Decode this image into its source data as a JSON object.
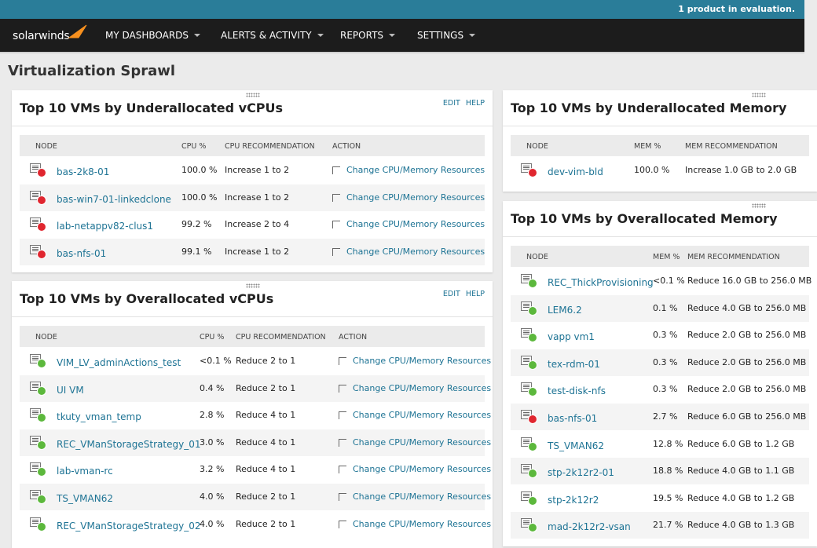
{
  "banner": "1 product in evaluation.",
  "nav": {
    "logo": "solarwinds",
    "menus": [
      "MY DASHBOARDS",
      "ALERTS & ACTIVITY",
      "REPORTS",
      "SETTINGS"
    ]
  },
  "page_title": "Virtualization Sprawl",
  "panels": [
    {
      "title": "Top 10 VMs by Underallocated vCPUs",
      "links": [
        "EDIT",
        "HELP"
      ],
      "columns": [
        "NODE",
        "CPU %",
        "CPU RECOMMENDATION",
        "ACTION"
      ],
      "rows": [
        {
          "node": "bas-2k8-01",
          "status_color": "#e0262f",
          "value": "100.0 %",
          "recommendation": "Increase 1 to 2",
          "action": "Change CPU/Memory Resources"
        },
        {
          "node": "bas-win7-01-linkedclone",
          "status_color": "#e0262f",
          "value": "100.0 %",
          "recommendation": "Increase 1 to 2",
          "action": "Change CPU/Memory Resources"
        },
        {
          "node": "lab-netappv82-clus1",
          "status_color": "#e0262f",
          "value": "99.2 %",
          "recommendation": "Increase 2 to 4",
          "action": "Change CPU/Memory Resources"
        },
        {
          "node": "bas-nfs-01",
          "status_color": "#e0262f",
          "value": "99.1 %",
          "recommendation": "Increase 1 to 2",
          "action": "Change CPU/Memory Resources"
        }
      ]
    },
    {
      "title": "Top 10 VMs by Overallocated vCPUs",
      "links": [
        "EDIT",
        "HELP"
      ],
      "columns": [
        "NODE",
        "CPU %",
        "CPU RECOMMENDATION",
        "ACTION"
      ],
      "rows": [
        {
          "node": "VIM_LV_adminActions_test",
          "status_color": "#5cb83c",
          "value": "<0.1 %",
          "recommendation": "Reduce 2 to 1",
          "action": "Change CPU/Memory Resources"
        },
        {
          "node": "UI VM",
          "status_color": "#5cb83c",
          "value": "0.4 %",
          "recommendation": "Reduce 2 to 1",
          "action": "Change CPU/Memory Resources"
        },
        {
          "node": "tkuty_vman_temp",
          "status_color": "#5cb83c",
          "value": "2.8 %",
          "recommendation": "Reduce 4 to 1",
          "action": "Change CPU/Memory Resources"
        },
        {
          "node": "REC_VManStorageStrategy_01",
          "status_color": "#5cb83c",
          "value": "3.0 %",
          "recommendation": "Reduce 4 to 1",
          "action": "Change CPU/Memory Resources"
        },
        {
          "node": "lab-vman-rc",
          "status_color": "#5cb83c",
          "value": "3.2 %",
          "recommendation": "Reduce 4 to 1",
          "action": "Change CPU/Memory Resources"
        },
        {
          "node": "TS_VMAN62",
          "status_color": "#5cb83c",
          "value": "4.0 %",
          "recommendation": "Reduce 2 to 1",
          "action": "Change CPU/Memory Resources"
        },
        {
          "node": "REC_VManStorageStrategy_02",
          "status_color": "#5cb83c",
          "value": "4.0 %",
          "recommendation": "Reduce 2 to 1",
          "action": "Change CPU/Memory Resources"
        }
      ]
    },
    {
      "title": "Top 10 VMs by Underallocated Memory",
      "columns": [
        "NODE",
        "MEM %",
        "MEM RECOMMENDATION"
      ],
      "rows": [
        {
          "node": "dev-vim-bld",
          "status_color": "#e0262f",
          "value": "100.0 %",
          "recommendation": "Increase 1.0 GB to 2.0 GB"
        }
      ]
    },
    {
      "title": "Top 10 VMs by Overallocated Memory",
      "columns": [
        "NODE",
        "MEM %",
        "MEM RECOMMENDATION"
      ],
      "rows": [
        {
          "node": "REC_ThickProvisioning",
          "status_color": "#5cb83c",
          "value": "<0.1 %",
          "recommendation": "Reduce 16.0 GB to 256.0 MB"
        },
        {
          "node": "LEM6.2",
          "status_color": "#5cb83c",
          "value": "0.1 %",
          "recommendation": "Reduce 4.0 GB to 256.0 MB"
        },
        {
          "node": "vapp vm1",
          "status_color": "#5cb83c",
          "value": "0.3 %",
          "recommendation": "Reduce 2.0 GB to 256.0 MB"
        },
        {
          "node": "tex-rdm-01",
          "status_color": "#5cb83c",
          "value": "0.3 %",
          "recommendation": "Reduce 2.0 GB to 256.0 MB"
        },
        {
          "node": "test-disk-nfs",
          "status_color": "#5cb83c",
          "value": "0.3 %",
          "recommendation": "Reduce 2.0 GB to 256.0 MB"
        },
        {
          "node": "bas-nfs-01",
          "status_color": "#e0262f",
          "value": "2.7 %",
          "recommendation": "Reduce 6.0 GB to 256.0 MB"
        },
        {
          "node": "TS_VMAN62",
          "status_color": "#5cb83c",
          "value": "12.8 %",
          "recommendation": "Reduce 6.0 GB to 1.2 GB"
        },
        {
          "node": "stp-2k12r2-01",
          "status_color": "#5cb83c",
          "value": "18.8 %",
          "recommendation": "Reduce 4.0 GB to 1.1 GB"
        },
        {
          "node": "stp-2k12r2",
          "status_color": "#5cb83c",
          "value": "19.5 %",
          "recommendation": "Reduce 4.0 GB to 1.2 GB"
        },
        {
          "node": "mad-2k12r2-vsan",
          "status_color": "#5cb83c",
          "value": "21.7 %",
          "recommendation": "Reduce 4.0 GB to 1.3 GB"
        }
      ]
    }
  ]
}
